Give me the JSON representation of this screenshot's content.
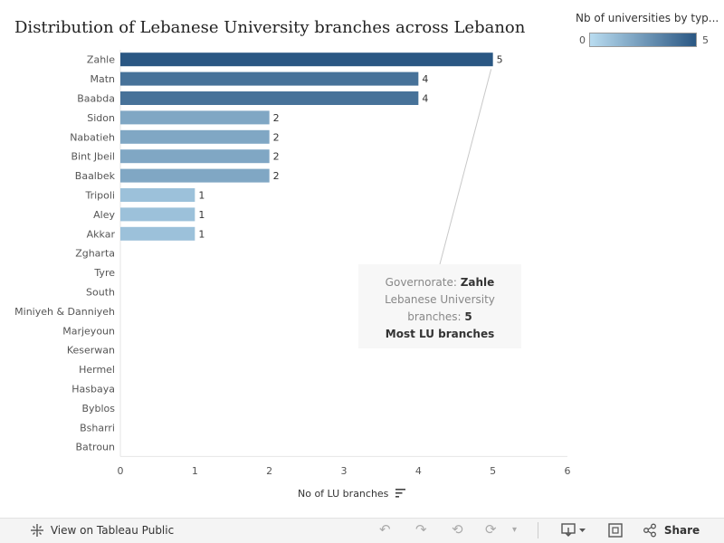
{
  "title": "Distribution of Lebanese University branches across Lebanon",
  "legend": {
    "title": "Nb of universities by typ...",
    "min": "0",
    "max": "5",
    "color_low": "#b9dcf0",
    "color_high": "#2a5783"
  },
  "axis": {
    "title": "No of LU branches"
  },
  "chart_data": {
    "type": "bar",
    "orientation": "horizontal",
    "categories": [
      "Zahle",
      "Matn",
      "Baabda",
      "Sidon",
      "Nabatieh",
      "Bint Jbeil",
      "Baalbek",
      "Tripoli",
      "Aley",
      "Akkar",
      "Zgharta",
      "Tyre",
      "South",
      "Miniyeh & Danniyeh",
      "Marjeyoun",
      "Keserwan",
      "Hermel",
      "Hasbaya",
      "Byblos",
      "Bsharri",
      "Batroun"
    ],
    "values": [
      5,
      4,
      4,
      2,
      2,
      2,
      2,
      1,
      1,
      1,
      0,
      0,
      0,
      0,
      0,
      0,
      0,
      0,
      0,
      0,
      0
    ],
    "xlabel": "No of LU branches",
    "xlim": [
      0,
      6
    ],
    "xticks": [
      0,
      1,
      2,
      3,
      4,
      5,
      6
    ],
    "title": "Distribution of Lebanese University branches across Lebanon",
    "legend_placement": "top-right",
    "color_scale": {
      "min": 0,
      "max": 5,
      "low": "#b9dcf0",
      "high": "#2a5783"
    }
  },
  "tooltip": {
    "governorate_label": "Governorate:",
    "governorate_value": "Zahle",
    "branches_label": "Lebanese University branches:",
    "branches_value": "5",
    "note": "Most LU branches"
  },
  "toolbar": {
    "view_label": "View on Tableau Public",
    "share_label": "Share",
    "icons": [
      "tableau-logo-icon",
      "undo-icon",
      "redo-icon",
      "revert-icon",
      "refresh-icon",
      "download-icon",
      "fullscreen-icon",
      "share-icon"
    ]
  }
}
